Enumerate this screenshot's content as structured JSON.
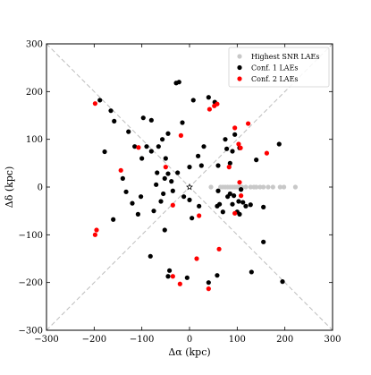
{
  "chart_data": {
    "type": "scatter",
    "title": "",
    "xlabel": "Δα (kpc)",
    "ylabel": "Δδ (kpc)",
    "xlim": [
      -300,
      300
    ],
    "ylim": [
      -300,
      300
    ],
    "xticks": [
      -300,
      -200,
      -100,
      0,
      100,
      200,
      300
    ],
    "yticks": [
      -300,
      -200,
      -100,
      0,
      100,
      200,
      300
    ],
    "x_tick_labels": [
      "−300",
      "−200",
      "−100",
      "0",
      "100",
      "200",
      "300"
    ],
    "y_tick_labels": [
      "−300",
      "−200",
      "−100",
      "0",
      "100",
      "200",
      "300"
    ],
    "grid": false,
    "legend_position": "top-right",
    "center_marker": {
      "x": 0,
      "y": 0,
      "symbol": "star"
    },
    "diagonal_reference_lines": [
      {
        "from": [
          -300,
          -300
        ],
        "to": [
          300,
          300
        ],
        "style": "dashed",
        "color": "#bdbdbd"
      },
      {
        "from": [
          -300,
          300
        ],
        "to": [
          300,
          -300
        ],
        "style": "dashed",
        "color": "#bdbdbd"
      }
    ],
    "series": [
      {
        "name": "Highest SNR LAEs",
        "color": "#c8c8c8",
        "points": [
          [
            45,
            0
          ],
          [
            65,
            0
          ],
          [
            70,
            0
          ],
          [
            75,
            0
          ],
          [
            80,
            0
          ],
          [
            85,
            0
          ],
          [
            90,
            0
          ],
          [
            95,
            0
          ],
          [
            100,
            0
          ],
          [
            105,
            0
          ],
          [
            110,
            0
          ],
          [
            118,
            0
          ],
          [
            128,
            0
          ],
          [
            135,
            0
          ],
          [
            140,
            0
          ],
          [
            148,
            0
          ],
          [
            155,
            0
          ],
          [
            165,
            0
          ],
          [
            175,
            0
          ],
          [
            190,
            0
          ],
          [
            198,
            0
          ],
          [
            222,
            0
          ]
        ]
      },
      {
        "name": "Conf. 1 LAEs",
        "color": "#000000",
        "points": [
          [
            -188,
            182
          ],
          [
            -165,
            160
          ],
          [
            -158,
            138
          ],
          [
            -128,
            116
          ],
          [
            -115,
            85
          ],
          [
            -97,
            145
          ],
          [
            -80,
            140
          ],
          [
            -80,
            75
          ],
          [
            -65,
            85
          ],
          [
            -57,
            100
          ],
          [
            -28,
            218
          ],
          [
            -22,
            220
          ],
          [
            -15,
            135
          ],
          [
            8,
            182
          ],
          [
            -100,
            60
          ],
          [
            -90,
            85
          ],
          [
            -68,
            30
          ],
          [
            -50,
            60
          ],
          [
            -52,
            18
          ],
          [
            -45,
            112
          ],
          [
            -70,
            5
          ],
          [
            -45,
            28
          ],
          [
            -38,
            12
          ],
          [
            -25,
            30
          ],
          [
            0,
            42
          ],
          [
            18,
            65
          ],
          [
            25,
            45
          ],
          [
            30,
            85
          ],
          [
            40,
            188
          ],
          [
            53,
            178
          ],
          [
            60,
            45
          ],
          [
            75,
            100
          ],
          [
            78,
            80
          ],
          [
            90,
            75
          ],
          [
            95,
            110
          ],
          [
            85,
            50
          ],
          [
            105,
            82
          ],
          [
            140,
            57
          ],
          [
            188,
            90
          ],
          [
            -178,
            74
          ],
          [
            -140,
            18
          ],
          [
            -133,
            -10
          ],
          [
            -120,
            -34
          ],
          [
            -108,
            -57
          ],
          [
            -160,
            -68
          ],
          [
            -102,
            -20
          ],
          [
            -75,
            -50
          ],
          [
            -60,
            -30
          ],
          [
            -55,
            -14
          ],
          [
            -35,
            -8
          ],
          [
            -12,
            -20
          ],
          [
            0,
            -27
          ],
          [
            20,
            -40
          ],
          [
            5,
            -65
          ],
          [
            60,
            -8
          ],
          [
            58,
            -40
          ],
          [
            63,
            -36
          ],
          [
            70,
            -52
          ],
          [
            80,
            -20
          ],
          [
            85,
            -14
          ],
          [
            90,
            -36
          ],
          [
            93,
            -18
          ],
          [
            100,
            -52
          ],
          [
            103,
            -30
          ],
          [
            105,
            -57
          ],
          [
            108,
            -5
          ],
          [
            112,
            -32
          ],
          [
            118,
            -40
          ],
          [
            128,
            -37
          ],
          [
            155,
            -42
          ],
          [
            155,
            -115
          ],
          [
            130,
            -178
          ],
          [
            195,
            -198
          ],
          [
            -82,
            -145
          ],
          [
            -52,
            -90
          ],
          [
            -42,
            -175
          ],
          [
            -45,
            -187
          ],
          [
            -5,
            -190
          ],
          [
            40,
            -200
          ],
          [
            58,
            -185
          ],
          [
            108,
            -5
          ]
        ]
      },
      {
        "name": "Conf. 2 LAEs",
        "color": "#ff0000",
        "points": [
          [
            -198,
            175
          ],
          [
            -18,
            108
          ],
          [
            -107,
            83
          ],
          [
            -144,
            35
          ],
          [
            -50,
            42
          ],
          [
            -35,
            -38
          ],
          [
            42,
            163
          ],
          [
            52,
            170
          ],
          [
            58,
            174
          ],
          [
            95,
            124
          ],
          [
            103,
            90
          ],
          [
            107,
            82
          ],
          [
            123,
            133
          ],
          [
            83,
            42
          ],
          [
            105,
            10
          ],
          [
            20,
            -60
          ],
          [
            95,
            -55
          ],
          [
            162,
            71
          ],
          [
            -198,
            -100
          ],
          [
            -195,
            -90
          ],
          [
            -35,
            -187
          ],
          [
            -20,
            -203
          ],
          [
            15,
            -150
          ],
          [
            40,
            -213
          ],
          [
            62,
            -130
          ],
          [
            108,
            -18
          ]
        ]
      }
    ]
  }
}
